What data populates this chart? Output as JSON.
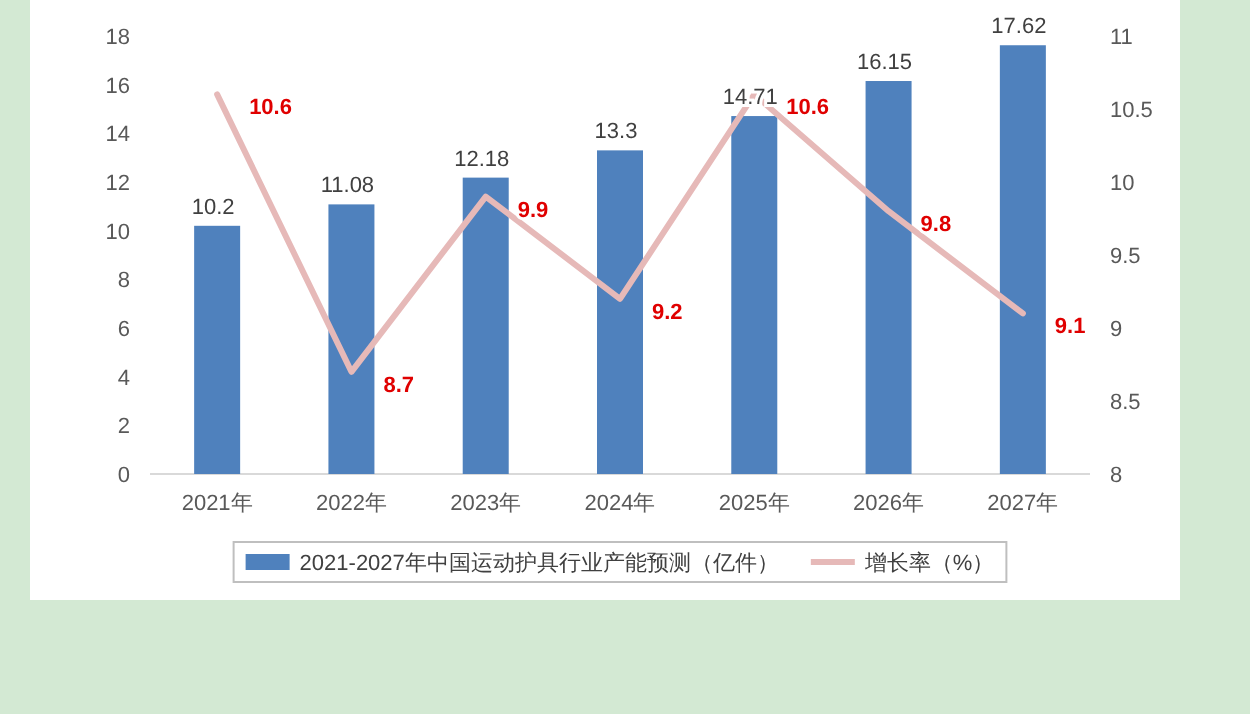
{
  "chart_data": {
    "type": "bar",
    "categories": [
      "2021年",
      "2022年",
      "2023年",
      "2024年",
      "2025年",
      "2026年",
      "2027年"
    ],
    "series": [
      {
        "name": "2021-2027年中国运动护具行业产能预测（亿件）",
        "color": "#4f81bd",
        "values": [
          10.2,
          11.08,
          12.18,
          13.3,
          14.71,
          16.15,
          17.62
        ]
      },
      {
        "name": "增长率（%）",
        "type": "line",
        "axis": "y2",
        "color": "#e6b9b8",
        "values": [
          10.6,
          8.7,
          9.9,
          9.2,
          10.6,
          9.8,
          9.1
        ]
      }
    ],
    "ylim": [
      0,
      18
    ],
    "yticks": [
      0,
      2,
      4,
      6,
      8,
      10,
      12,
      14,
      16,
      18
    ],
    "y2lim": [
      8,
      11
    ],
    "y2ticks": [
      8,
      8.5,
      9,
      9.5,
      10,
      10.5,
      11
    ],
    "data_labels": true,
    "legend": "bottom",
    "grid": false,
    "marker": "none",
    "line_style": "solid"
  }
}
